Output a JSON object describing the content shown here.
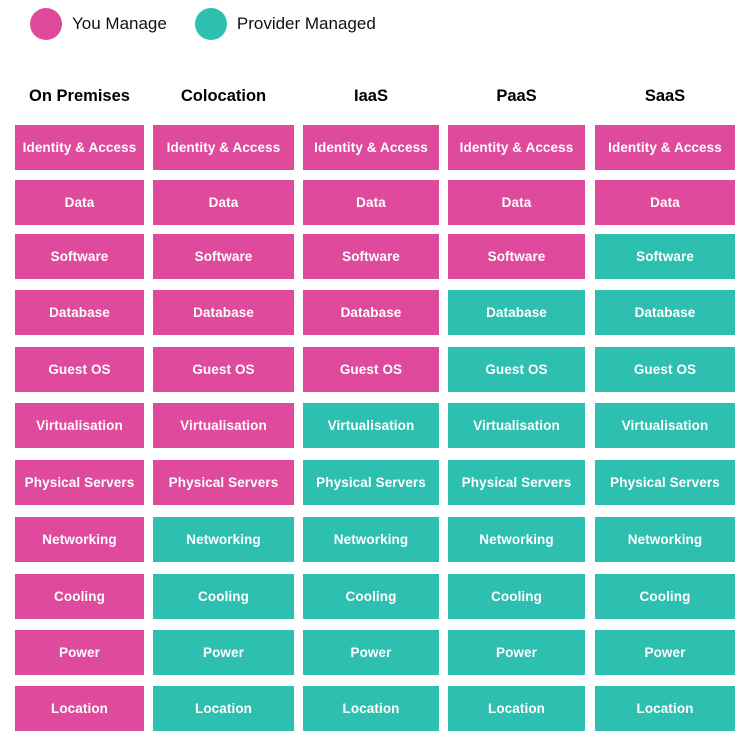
{
  "legend": {
    "you_manage": {
      "label": "You Manage",
      "color": "#e04a9c"
    },
    "provider_managed": {
      "label": "Provider Managed",
      "color": "#2dbfb0"
    }
  },
  "layers": [
    "Identity & Access",
    "Data",
    "Software",
    "Database",
    "Guest OS",
    "Virtualisation",
    "Physical Servers",
    "Networking",
    "Cooling",
    "Power",
    "Location"
  ],
  "columns": [
    {
      "title": "On Premises",
      "you_manage_count": 11
    },
    {
      "title": "Colocation",
      "you_manage_count": 7
    },
    {
      "title": "IaaS",
      "you_manage_count": 5
    },
    {
      "title": "PaaS",
      "you_manage_count": 3
    },
    {
      "title": "SaaS",
      "you_manage_count": 2
    }
  ]
}
